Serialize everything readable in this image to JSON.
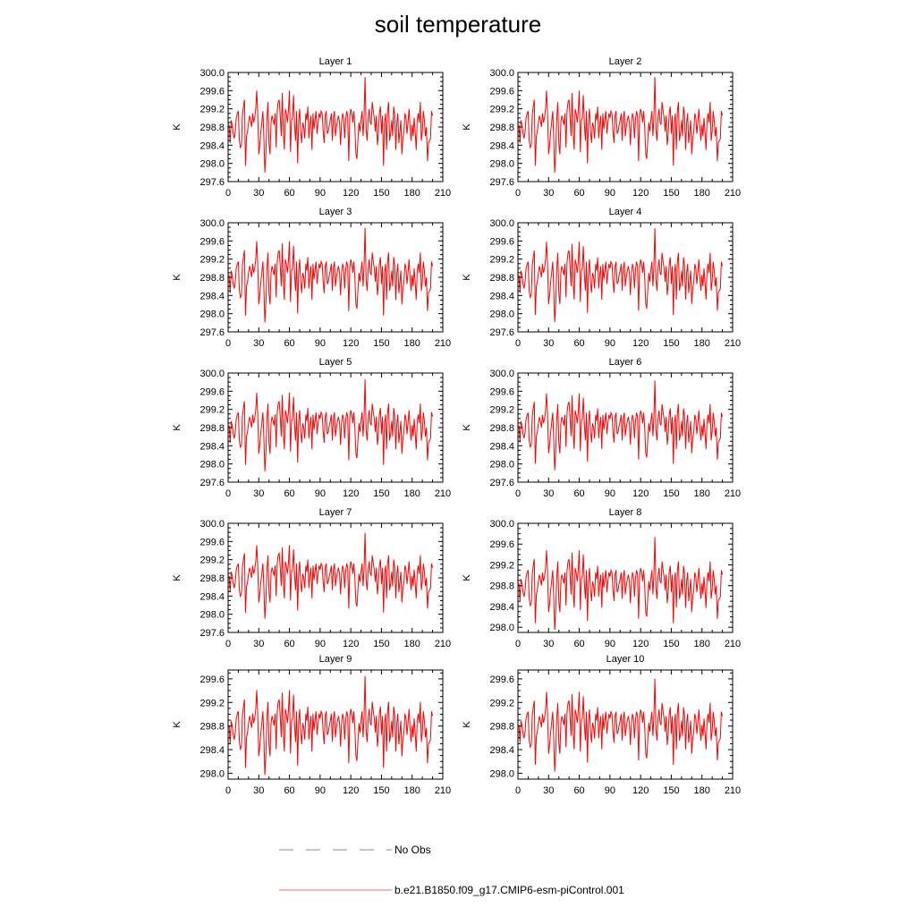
{
  "title": "soil temperature",
  "style": {
    "series_color": "#ff0000",
    "obs_color": "#8080c0"
  },
  "legend": [
    {
      "label": "No Obs",
      "style": "dashed",
      "color": "#8080c0"
    },
    {
      "label": "b.e21.B1850.f09_g17.CMIP6-esm-piControl.001",
      "style": "solid",
      "color": "#ff6a6a"
    }
  ],
  "chart_data": [
    {
      "type": "line",
      "title": "Layer 1",
      "ylabel": "K",
      "xlim": [
        0,
        210
      ],
      "ylim": [
        297.6,
        300.0
      ],
      "xticks": [
        "0",
        "30",
        "60",
        "90",
        "120",
        "150",
        "180",
        "210"
      ],
      "yticks": [
        "297.6",
        "298.0",
        "298.4",
        "298.8",
        "299.2",
        "299.6",
        "300.0"
      ],
      "series": [
        {
          "offset": 0.0,
          "scale": 1.0
        }
      ]
    },
    {
      "type": "line",
      "title": "Layer 2",
      "ylabel": "K",
      "xlim": [
        0,
        210
      ],
      "ylim": [
        297.6,
        300.0
      ],
      "xticks": [
        "0",
        "30",
        "60",
        "90",
        "120",
        "150",
        "180",
        "210"
      ],
      "yticks": [
        "297.6",
        "298.0",
        "298.4",
        "298.8",
        "299.2",
        "299.6",
        "300.0"
      ],
      "series": [
        {
          "offset": 0.0,
          "scale": 1.0
        }
      ]
    },
    {
      "type": "line",
      "title": "Layer 3",
      "ylabel": "K",
      "xlim": [
        0,
        210
      ],
      "ylim": [
        297.6,
        300.0
      ],
      "xticks": [
        "0",
        "30",
        "60",
        "90",
        "120",
        "150",
        "180",
        "210"
      ],
      "yticks": [
        "297.6",
        "298.0",
        "298.4",
        "298.8",
        "299.2",
        "299.6",
        "300.0"
      ],
      "series": [
        {
          "offset": 0.0,
          "scale": 0.99
        }
      ]
    },
    {
      "type": "line",
      "title": "Layer 4",
      "ylabel": "K",
      "xlim": [
        0,
        210
      ],
      "ylim": [
        297.6,
        300.0
      ],
      "xticks": [
        "0",
        "30",
        "60",
        "90",
        "120",
        "150",
        "180",
        "210"
      ],
      "yticks": [
        "297.6",
        "298.0",
        "298.4",
        "298.8",
        "299.2",
        "299.6",
        "300.0"
      ],
      "series": [
        {
          "offset": 0.0,
          "scale": 0.98
        }
      ]
    },
    {
      "type": "line",
      "title": "Layer 5",
      "ylabel": "K",
      "xlim": [
        0,
        210
      ],
      "ylim": [
        297.6,
        300.0
      ],
      "xticks": [
        "0",
        "30",
        "60",
        "90",
        "120",
        "150",
        "180",
        "210"
      ],
      "yticks": [
        "297.6",
        "298.0",
        "298.4",
        "298.8",
        "299.2",
        "299.6",
        "300.0"
      ],
      "series": [
        {
          "offset": 0.0,
          "scale": 0.96
        }
      ]
    },
    {
      "type": "line",
      "title": "Layer 6",
      "ylabel": "K",
      "xlim": [
        0,
        210
      ],
      "ylim": [
        297.6,
        300.0
      ],
      "xticks": [
        "0",
        "30",
        "60",
        "90",
        "120",
        "150",
        "180",
        "210"
      ],
      "yticks": [
        "297.6",
        "298.0",
        "298.4",
        "298.8",
        "299.2",
        "299.6",
        "300.0"
      ],
      "series": [
        {
          "offset": 0.0,
          "scale": 0.94
        }
      ]
    },
    {
      "type": "line",
      "title": "Layer 7",
      "ylabel": "K",
      "xlim": [
        0,
        210
      ],
      "ylim": [
        297.6,
        300.0
      ],
      "xticks": [
        "0",
        "30",
        "60",
        "90",
        "120",
        "150",
        "180",
        "210"
      ],
      "yticks": [
        "297.6",
        "298.0",
        "298.4",
        "298.8",
        "299.2",
        "299.6",
        "300.0"
      ],
      "series": [
        {
          "offset": 0.0,
          "scale": 0.9
        }
      ]
    },
    {
      "type": "line",
      "title": "Layer 8",
      "ylabel": "K",
      "xlim": [
        0,
        210
      ],
      "ylim": [
        297.9,
        300.0
      ],
      "xticks": [
        "0",
        "30",
        "60",
        "90",
        "120",
        "150",
        "180",
        "210"
      ],
      "yticks": [
        "298.0",
        "298.4",
        "298.8",
        "299.2",
        "299.6",
        "300.0"
      ],
      "series": [
        {
          "offset": 0.0,
          "scale": 0.85
        }
      ]
    },
    {
      "type": "line",
      "title": "Layer 9",
      "ylabel": "K",
      "xlim": [
        0,
        210
      ],
      "ylim": [
        297.9,
        299.75
      ],
      "xticks": [
        "0",
        "30",
        "60",
        "90",
        "120",
        "150",
        "180",
        "210"
      ],
      "yticks": [
        "298.0",
        "298.4",
        "298.8",
        "299.2",
        "299.6"
      ],
      "series": [
        {
          "offset": -0.03,
          "scale": 0.8
        }
      ]
    },
    {
      "type": "line",
      "title": "Layer 10",
      "ylabel": "K",
      "xlim": [
        0,
        210
      ],
      "ylim": [
        297.9,
        299.75
      ],
      "xticks": [
        "0",
        "30",
        "60",
        "90",
        "120",
        "150",
        "180",
        "210"
      ],
      "yticks": [
        "298.0",
        "298.4",
        "298.8",
        "299.2",
        "299.6"
      ],
      "series": [
        {
          "offset": -0.02,
          "scale": 0.75
        }
      ]
    }
  ],
  "base_series": {
    "mean": 298.8,
    "x_start": 1,
    "x_step": 1,
    "anomaly": [
      0.05,
      -0.35,
      0.15,
      0.05,
      -0.15,
      -0.25,
      -0.1,
      0.2,
      0.3,
      0.35,
      -0.3,
      -0.45,
      -0.4,
      0.25,
      0.45,
      0.6,
      -0.85,
      -0.2,
      -0.1,
      0.1,
      0.25,
      0.15,
      0.0,
      0.3,
      0.1,
      0.2,
      0.4,
      0.8,
      0.3,
      -0.6,
      -0.4,
      -0.1,
      0.1,
      0.35,
      -0.25,
      -1.0,
      -0.55,
      0.2,
      0.55,
      -0.35,
      -0.6,
      0.1,
      0.25,
      0.15,
      0.05,
      0.3,
      -0.45,
      0.35,
      0.55,
      0.6,
      0.25,
      -0.2,
      0.75,
      -0.1,
      -0.5,
      0.4,
      0.3,
      0.1,
      0.35,
      0.8,
      -0.55,
      0.15,
      0.2,
      0.7,
      0.05,
      -0.3,
      0.35,
      -0.8,
      0.15,
      0.4,
      -0.1,
      -0.35,
      0.1,
      0.0,
      -0.25,
      0.3,
      0.15,
      0.45,
      -0.25,
      0.05,
      0.25,
      -0.5,
      0.3,
      -0.05,
      0.15,
      0.35,
      -0.15,
      0.1,
      0.3,
      0.2,
      0.35,
      0.3,
      -0.1,
      -0.35,
      0.25,
      0.35,
      -0.15,
      -0.1,
      0.05,
      0.15,
      0.3,
      -0.3,
      0.2,
      0.35,
      -0.2,
      0.0,
      0.15,
      0.25,
      0.1,
      -0.4,
      0.1,
      0.3,
      0.2,
      -0.25,
      0.15,
      0.35,
      0.25,
      -0.75,
      0.2,
      0.4,
      0.3,
      0.1,
      0.35,
      0.0,
      -0.6,
      -0.7,
      -0.3,
      0.1,
      -0.1,
      0.15,
      0.35,
      -0.2,
      0.25,
      1.1,
      -0.05,
      -0.3,
      0.2,
      0.4,
      0.1,
      0.05,
      0.55,
      0.35,
      0.2,
      -0.1,
      0.25,
      -0.4,
      -0.15,
      0.3,
      0.45,
      -0.15,
      0.25,
      -0.85,
      0.1,
      0.3,
      -0.5,
      0.35,
      0.55,
      -0.3,
      -0.15,
      0.15,
      -0.2,
      0.45,
      0.25,
      -0.5,
      0.1,
      0.3,
      -0.35,
      -0.1,
      0.15,
      -0.6,
      -0.25,
      -0.1,
      0.3,
      0.2,
      -0.15,
      0.1,
      0.4,
      0.0,
      -0.3,
      0.05,
      -0.2,
      0.2,
      -0.1,
      -0.5,
      0.15,
      0.3,
      0.1,
      0.55,
      -0.3,
      -0.1,
      0.35,
      0.15,
      -0.2,
      0.0,
      -0.75,
      -0.35,
      -0.3,
      -0.25,
      0.35,
      0.25
    ]
  }
}
